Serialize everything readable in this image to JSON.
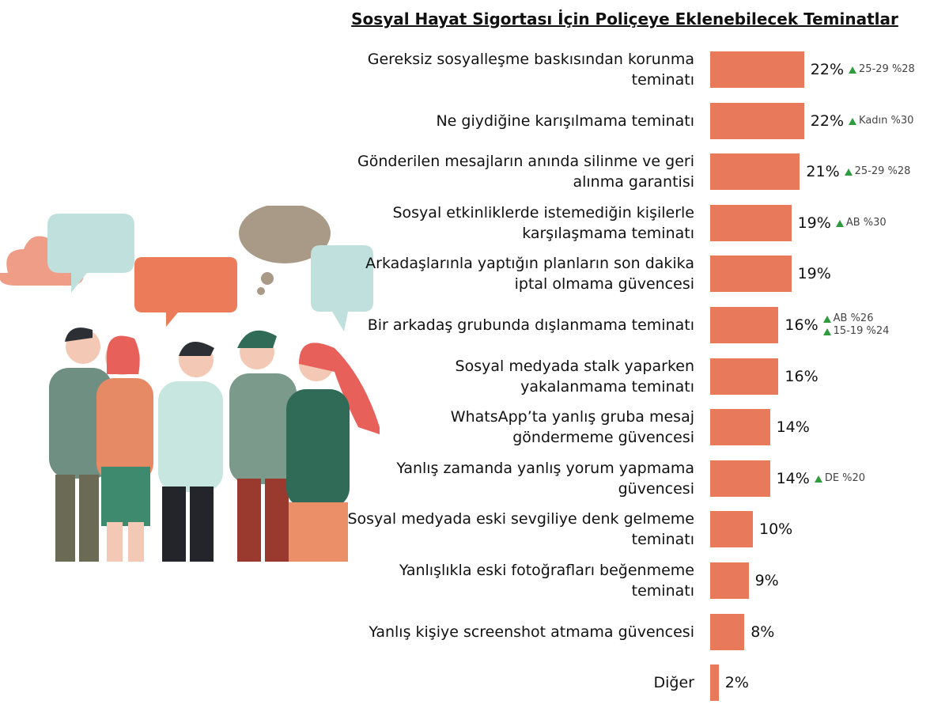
{
  "chart_data": {
    "type": "bar",
    "orientation": "horizontal",
    "title": "Sosyal Hayat Sigortası İçin Poliçeye Eklenebilecek Teminatlar",
    "categories": [
      "Gereksiz sosyalleşme baskısından korunma teminatı",
      "Ne giydiğine karışılmama teminatı",
      "Gönderilen mesajların anında silinme ve geri alınma garantisi",
      "Sosyal etkinliklerde istemediğin kişilerle karşılaşmama teminatı",
      "Arkadaşlarınla yaptığın planların son dakika iptal olmama güvencesi",
      "Bir arkadaş grubunda dışlanmama teminatı",
      "Sosyal medyada stalk yaparken yakalanmama teminatı",
      "WhatsApp’ta yanlış gruba mesaj göndermeme güvencesi",
      "Yanlış zamanda yanlış yorum yapmama güvencesi",
      "Sosyal medyada eski sevgiliye denk gelmeme teminatı",
      "Yanlışlıkla eski fotoğrafları beğenmeme teminatı",
      "Yanlış kişiye screenshot atmama güvencesi",
      "Diğer"
    ],
    "values": [
      22,
      22,
      21,
      19,
      19,
      16,
      16,
      14,
      14,
      10,
      9,
      8,
      2
    ],
    "value_labels": [
      "22%",
      "22%",
      "21%",
      "19%",
      "19%",
      "16%",
      "16%",
      "14%",
      "14%",
      "10%",
      "9%",
      "8%",
      "2%"
    ],
    "annotations": [
      [
        "25-29 %28"
      ],
      [
        "Kadın %30"
      ],
      [
        "25-29 %28"
      ],
      [
        "AB %30"
      ],
      null,
      [
        "AB %26",
        "15-19 %24"
      ],
      null,
      null,
      [
        "DE %20"
      ],
      null,
      null,
      null,
      null
    ],
    "color": "#e8795a",
    "annotation_color": "#2e9b3e"
  }
}
